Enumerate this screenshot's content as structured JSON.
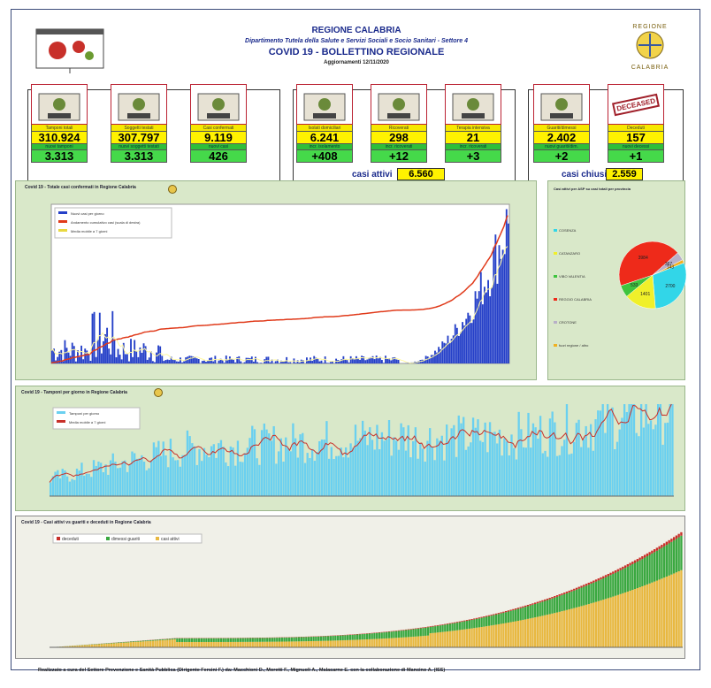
{
  "header": {
    "region": "REGIONE CALABRIA",
    "dept": "Dipartimento Tutela della Salute e Servizi Sociali e Socio Sanitari - Settore 4",
    "title": "COVID 19 - BOLLETTINO REGIONALE",
    "updated": "Aggiornamenti 12/11/2020",
    "seal_top": "REGIONE",
    "seal_bottom": "CALABRIA"
  },
  "kpis": [
    {
      "icon": "lab-icon",
      "label": "Tamponi totali",
      "value": "310.924",
      "label2": "nuovi tamponi",
      "value2": "3.313"
    },
    {
      "icon": "people-grid-icon",
      "label": "Soggetti testati",
      "value": "307.797",
      "label2": "nuovi soggetti testati",
      "value2": "3.313"
    },
    {
      "icon": "virus-people-icon",
      "label": "Casi confermati",
      "value": "9.119",
      "label2": "nuovi casi",
      "value2": "426"
    },
    {
      "icon": "house-icon",
      "label": "Isolati domiciliari",
      "value": "6.241",
      "label2": "incr. isolamento",
      "value2": "+408"
    },
    {
      "icon": "hospital-bed-icon",
      "label": "Ricoverati",
      "value": "298",
      "label2": "incr. ricoverati",
      "value2": "+12"
    },
    {
      "icon": "icu-bed-icon",
      "label": "Terapia intensiva",
      "value": "21",
      "label2": "incr. ricoverati",
      "value2": "+3"
    },
    {
      "icon": "recovered-person-icon",
      "label": "Guariti/dimessi",
      "value": "2.402",
      "label2": "nuovi guariti/dim.",
      "value2": "+2"
    },
    {
      "icon": "deceased-stamp-icon",
      "label": "Deceduti",
      "value": "157",
      "label2": "nuovi decessi",
      "value2": "+1",
      "stamp": "DECEASED"
    }
  ],
  "summary": {
    "active_label": "casi attivi",
    "active_value": "6.560",
    "closed_label": "casi chiusi",
    "closed_value": "2.559"
  },
  "chart1": {
    "title": "Covid 19 - Totale casi confermati in Regione Calabria",
    "legend": [
      "Nuovi casi per giorno",
      "Andamento cumulativo casi (scala di destra)",
      "Media mobile a 7 giorni"
    ]
  },
  "chart2": {
    "title": "Covid 19 - Tamponi per giorno in Regione Calabria",
    "legend": [
      "Tamponi per giorno",
      "Media mobile a 7 giorni"
    ]
  },
  "chart3": {
    "title": "Covid 19 - Casi attivi vs guariti e deceduti in Regione Calabria",
    "legend": [
      "deceduti",
      "dimessi guariti",
      "casi attivi"
    ]
  },
  "pie_title": "Casi attivi per ASP su casi totali per provincia",
  "chart_data": [
    {
      "type": "bar",
      "title": "Covid 19 - Totale casi confermati in Regione Calabria",
      "series": [
        {
          "name": "Nuovi casi per giorno"
        },
        {
          "name": "Andamento cumulativo casi (scala di destra)"
        },
        {
          "name": "Media mobile a 7 giorni"
        }
      ],
      "trend": "daily new cases low (<100) until October, rising to ~450 in November; cumulative rises from 0 to ~9119"
    },
    {
      "type": "pie",
      "title": "Casi attivi per ASP su casi totali per provincia",
      "categories": [
        "COSENZA",
        "CATANZARO",
        "VIBO VALENTIA",
        "REGGIO CALABRIA",
        "CROTONE",
        "fuori regione / altro"
      ],
      "values": [
        2700,
        1401,
        533,
        3984,
        367,
        143
      ],
      "colors": [
        "#32d6e8",
        "#f0f02a",
        "#3ec43e",
        "#ee2a1a",
        "#b8b0c8",
        "#f0b020"
      ]
    },
    {
      "type": "bar",
      "title": "Covid 19 - Tamponi per giorno in Regione Calabria",
      "series": [
        {
          "name": "Tamponi per giorno"
        },
        {
          "name": "Media mobile a 7 giorni"
        }
      ]
    },
    {
      "type": "area",
      "title": "Covid 19 - Casi attivi vs guariti e deceduti in Regione Calabria",
      "series": [
        {
          "name": "deceduti"
        },
        {
          "name": "dimessi guariti"
        },
        {
          "name": "casi attivi"
        }
      ]
    }
  ],
  "footer": "Realizzato a cura del Settore Prevenzione e Sanità Pubblica (Dirigente Fersini F.) da: Macchioni D., Moretti F., Mignuoli A., Malacarne E. con la collaborazione di Mancino A. (ISS)"
}
